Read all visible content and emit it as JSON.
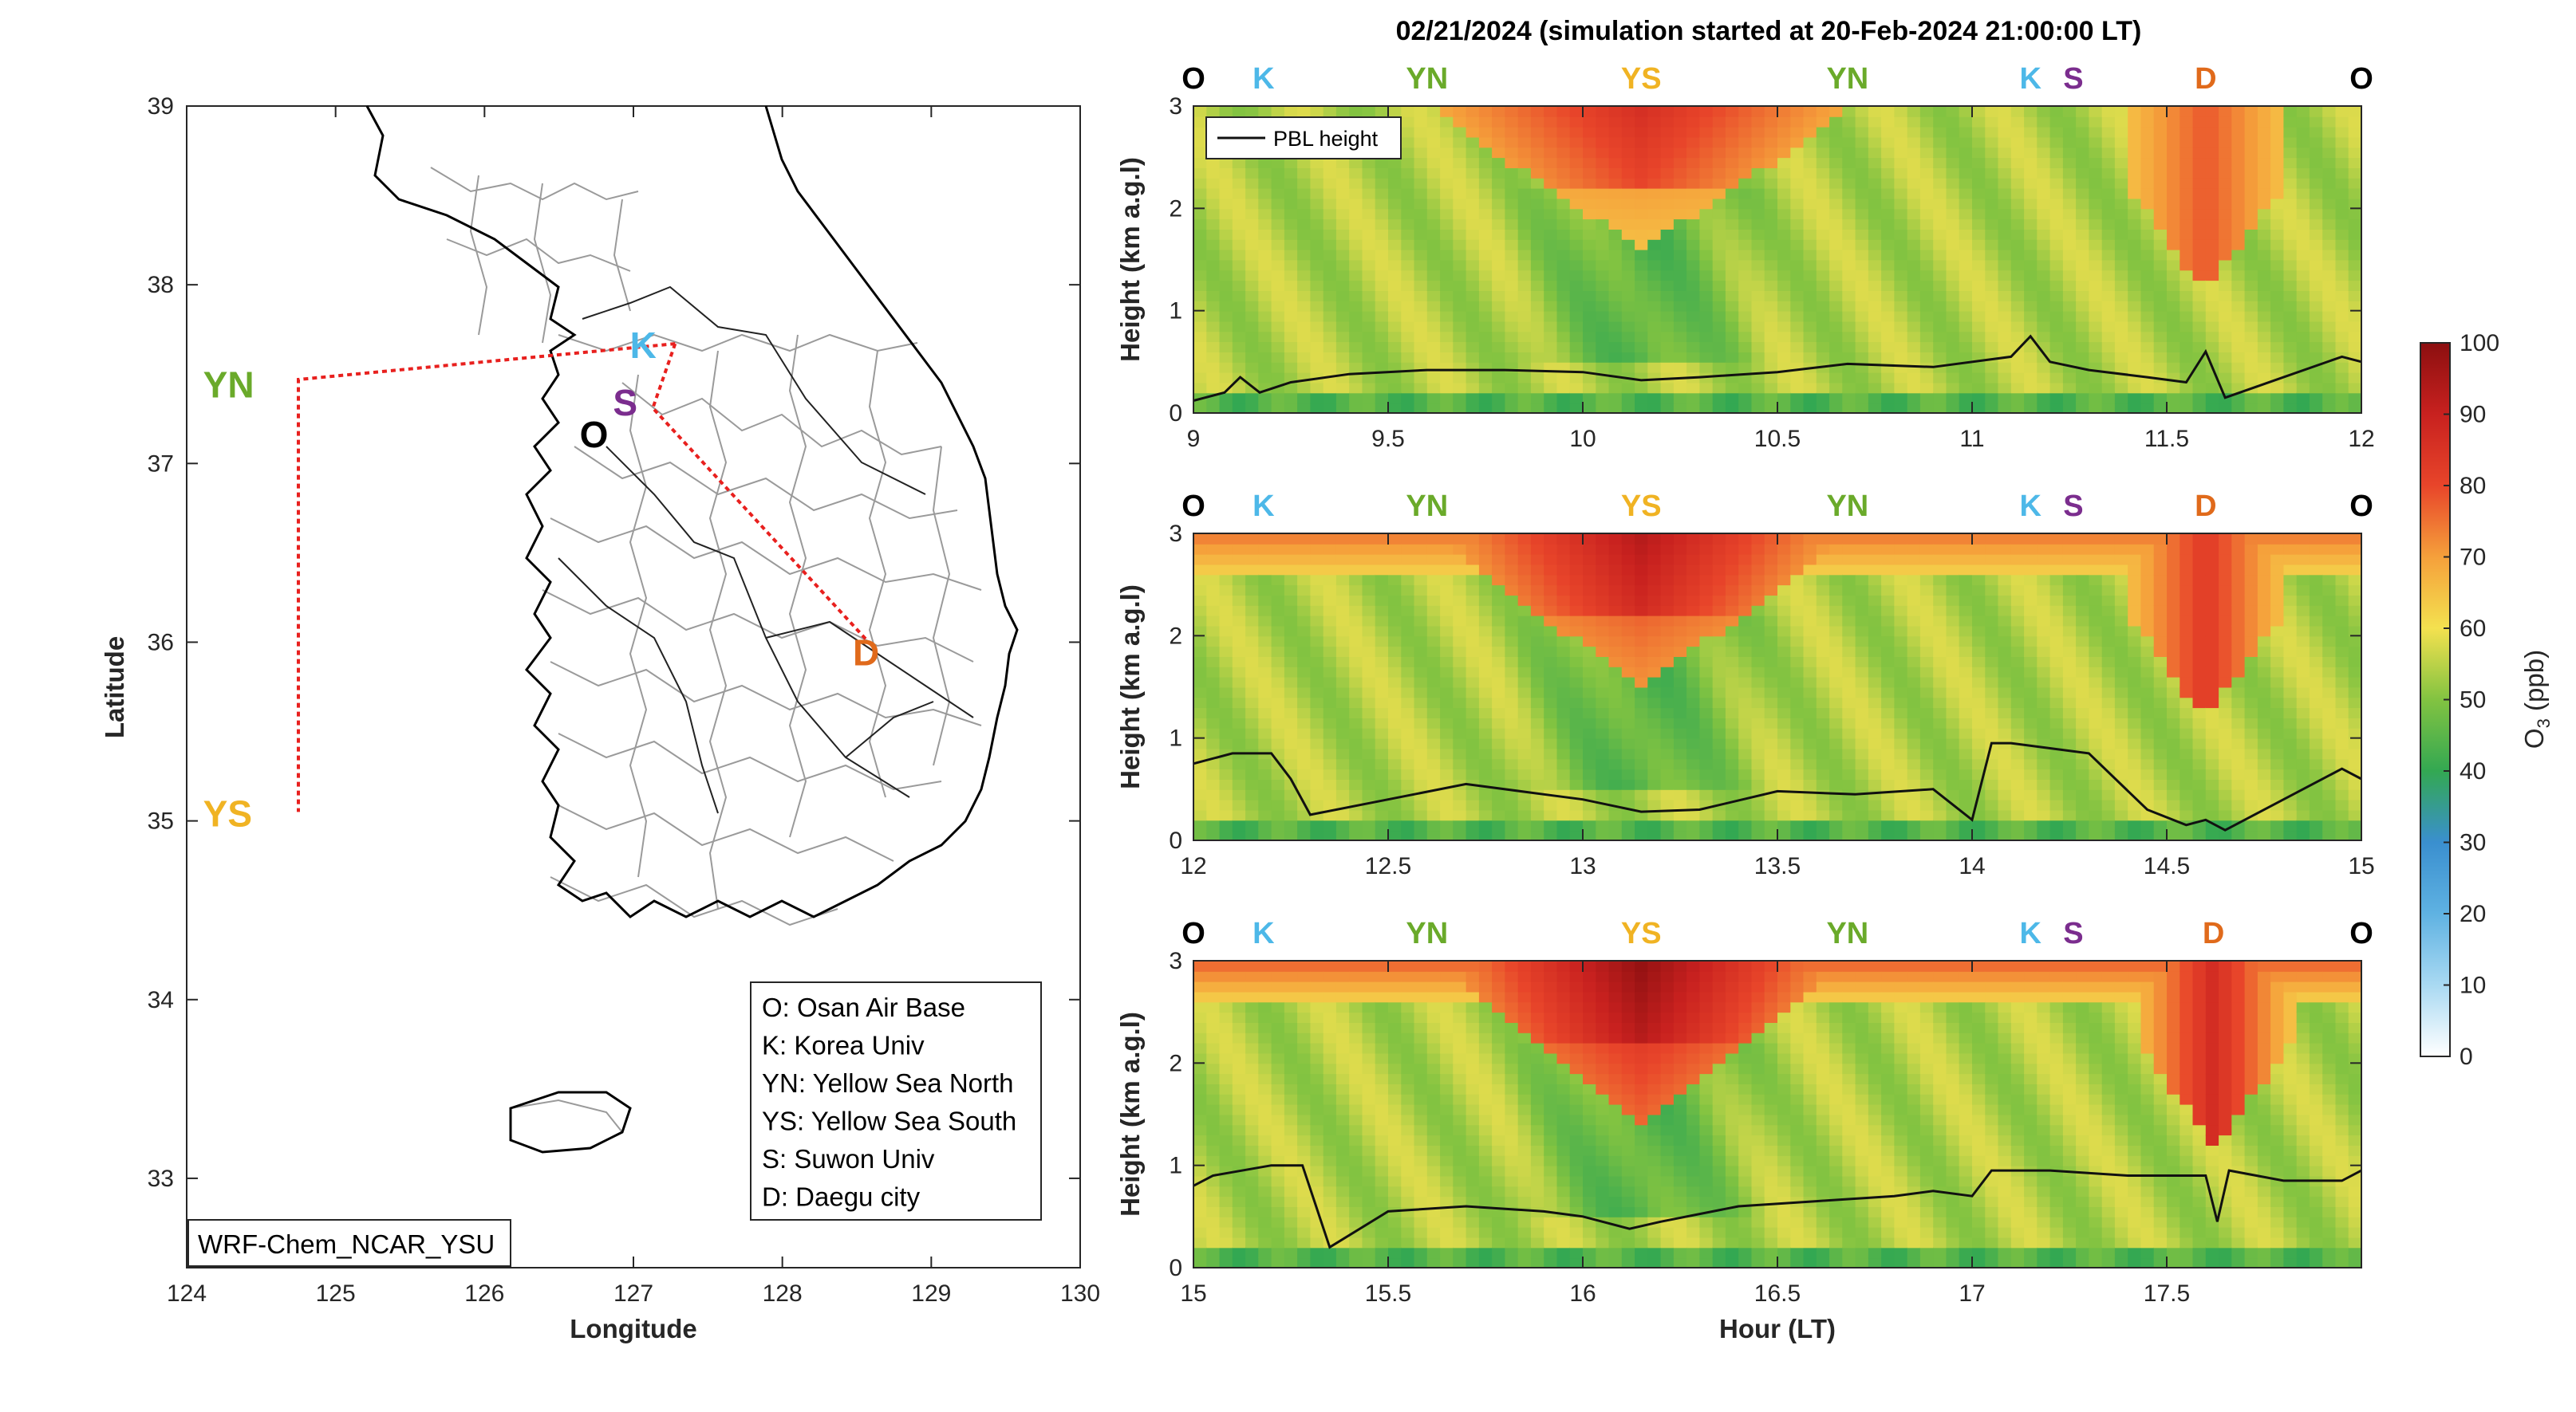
{
  "title": "02/21/2024 (simulation started at 20-Feb-2024 21:00:00 LT)",
  "map": {
    "xlabel": "Longitude",
    "ylabel": "Latitude",
    "xlim": [
      124,
      130
    ],
    "ylim": [
      32.5,
      39
    ],
    "xticks": [
      "124",
      "125",
      "126",
      "127",
      "128",
      "129",
      "130"
    ],
    "yticks": [
      "33",
      "34",
      "35",
      "36",
      "37",
      "38",
      "39"
    ],
    "model_label": "WRF-Chem_NCAR_YSU",
    "legend": [
      "O: Osan Air Base",
      "K: Korea Univ",
      "YN: Yellow Sea North",
      "YS: Yellow Sea South",
      "S: Suwon Univ",
      "D: Daegu city"
    ],
    "points": [
      {
        "label": "K",
        "lon": 127.03,
        "lat": 37.59,
        "color": "#4db8e8"
      },
      {
        "label": "S",
        "lon": 126.97,
        "lat": 37.27,
        "color": "#7b2d8e"
      },
      {
        "label": "O",
        "lon": 126.8,
        "lat": 37.09,
        "color": "#000000"
      },
      {
        "label": "YN",
        "lon": 124.7,
        "lat": 37.45,
        "color": "#6aaa2a"
      },
      {
        "label": "YS",
        "lon": 124.7,
        "lat": 35.05,
        "color": "#f0b323"
      },
      {
        "label": "D",
        "lon": 128.5,
        "lat": 35.95,
        "color": "#e06a1b"
      }
    ],
    "route_color": "#e8201e"
  },
  "colorbar": {
    "label": "O3 (ppb)",
    "ticks": [
      "0",
      "10",
      "20",
      "30",
      "40",
      "50",
      "60",
      "70",
      "80",
      "90",
      "100"
    ],
    "range": [
      0,
      100
    ]
  },
  "chart_data": [
    {
      "type": "heatmap",
      "variable": "O3 (ppb)",
      "xlabel": "",
      "ylabel": "Height (km a.g.l)",
      "xlim": [
        9,
        12
      ],
      "ylim": [
        0,
        3
      ],
      "xticks": [
        "9",
        "9.5",
        "10",
        "10.5",
        "11",
        "11.5",
        "12"
      ],
      "yticks": [
        "0",
        "1",
        "2",
        "3"
      ],
      "top_labels": [
        {
          "label": "O",
          "x": 9.0,
          "color": "#000000"
        },
        {
          "label": "K",
          "x": 9.18,
          "color": "#4db8e8"
        },
        {
          "label": "YN",
          "x": 9.6,
          "color": "#6aaa2a"
        },
        {
          "label": "YS",
          "x": 10.15,
          "color": "#f0b323"
        },
        {
          "label": "YN",
          "x": 10.68,
          "color": "#6aaa2a"
        },
        {
          "label": "K",
          "x": 11.15,
          "color": "#4db8e8"
        },
        {
          "label": "S",
          "x": 11.26,
          "color": "#7b2d8e"
        },
        {
          "label": "D",
          "x": 11.6,
          "color": "#e06a1b"
        },
        {
          "label": "O",
          "x": 12.0,
          "color": "#000000"
        }
      ],
      "legend": [
        "PBL height"
      ],
      "pbl_height": {
        "x": [
          9.0,
          9.08,
          9.12,
          9.17,
          9.25,
          9.4,
          9.6,
          9.8,
          10.0,
          10.15,
          10.3,
          10.5,
          10.68,
          10.9,
          11.1,
          11.15,
          11.2,
          11.3,
          11.45,
          11.55,
          11.6,
          11.65,
          11.8,
          11.95,
          12.0
        ],
        "y": [
          0.12,
          0.2,
          0.35,
          0.2,
          0.3,
          0.38,
          0.42,
          0.42,
          0.4,
          0.32,
          0.35,
          0.4,
          0.48,
          0.45,
          0.55,
          0.75,
          0.5,
          0.42,
          0.35,
          0.3,
          0.6,
          0.15,
          0.35,
          0.55,
          0.5
        ]
      }
    },
    {
      "type": "heatmap",
      "variable": "O3 (ppb)",
      "xlabel": "",
      "ylabel": "Height (km a.g.l)",
      "xlim": [
        12,
        15
      ],
      "ylim": [
        0,
        3
      ],
      "xticks": [
        "12",
        "12.5",
        "13",
        "13.5",
        "14",
        "14.5",
        "15"
      ],
      "yticks": [
        "0",
        "1",
        "2",
        "3"
      ],
      "top_labels": [
        {
          "label": "O",
          "x": 12.0,
          "color": "#000000"
        },
        {
          "label": "K",
          "x": 12.18,
          "color": "#4db8e8"
        },
        {
          "label": "YN",
          "x": 12.6,
          "color": "#6aaa2a"
        },
        {
          "label": "YS",
          "x": 13.15,
          "color": "#f0b323"
        },
        {
          "label": "YN",
          "x": 13.68,
          "color": "#6aaa2a"
        },
        {
          "label": "K",
          "x": 14.15,
          "color": "#4db8e8"
        },
        {
          "label": "S",
          "x": 14.26,
          "color": "#7b2d8e"
        },
        {
          "label": "D",
          "x": 14.6,
          "color": "#e06a1b"
        },
        {
          "label": "O",
          "x": 15.0,
          "color": "#000000"
        }
      ],
      "pbl_height": {
        "x": [
          12.0,
          12.1,
          12.2,
          12.25,
          12.3,
          12.5,
          12.7,
          12.9,
          13.0,
          13.15,
          13.3,
          13.5,
          13.7,
          13.9,
          14.0,
          14.05,
          14.1,
          14.2,
          14.3,
          14.45,
          14.55,
          14.6,
          14.65,
          14.8,
          14.95,
          15.0
        ],
        "y": [
          0.75,
          0.85,
          0.85,
          0.6,
          0.25,
          0.4,
          0.55,
          0.45,
          0.4,
          0.28,
          0.3,
          0.48,
          0.45,
          0.5,
          0.2,
          0.95,
          0.95,
          0.9,
          0.85,
          0.3,
          0.15,
          0.2,
          0.1,
          0.4,
          0.7,
          0.6
        ]
      }
    },
    {
      "type": "heatmap",
      "variable": "O3 (ppb)",
      "xlabel": "Hour (LT)",
      "ylabel": "Height (km a.g.l)",
      "xlim": [
        15,
        18
      ],
      "ylim": [
        0,
        3
      ],
      "xticks": [
        "15",
        "15.5",
        "16",
        "16.5",
        "17",
        "17.5"
      ],
      "yticks": [
        "0",
        "1",
        "2",
        "3"
      ],
      "top_labels": [
        {
          "label": "O",
          "x": 15.0,
          "color": "#000000"
        },
        {
          "label": "K",
          "x": 15.18,
          "color": "#4db8e8"
        },
        {
          "label": "YN",
          "x": 15.6,
          "color": "#6aaa2a"
        },
        {
          "label": "YS",
          "x": 16.15,
          "color": "#f0b323"
        },
        {
          "label": "YN",
          "x": 16.68,
          "color": "#6aaa2a"
        },
        {
          "label": "K",
          "x": 17.15,
          "color": "#4db8e8"
        },
        {
          "label": "S",
          "x": 17.26,
          "color": "#7b2d8e"
        },
        {
          "label": "D",
          "x": 17.62,
          "color": "#e06a1b"
        },
        {
          "label": "O",
          "x": 18.0,
          "color": "#000000"
        }
      ],
      "pbl_height": {
        "x": [
          15.0,
          15.05,
          15.2,
          15.28,
          15.35,
          15.5,
          15.7,
          15.9,
          16.0,
          16.12,
          16.2,
          16.4,
          16.6,
          16.8,
          16.9,
          17.0,
          17.05,
          17.2,
          17.4,
          17.6,
          17.63,
          17.66,
          17.8,
          17.95,
          18.0
        ],
        "y": [
          0.8,
          0.9,
          1.0,
          1.0,
          0.2,
          0.55,
          0.6,
          0.55,
          0.5,
          0.38,
          0.45,
          0.6,
          0.65,
          0.7,
          0.75,
          0.7,
          0.95,
          0.95,
          0.9,
          0.9,
          0.45,
          0.95,
          0.85,
          0.85,
          0.95
        ]
      }
    }
  ]
}
